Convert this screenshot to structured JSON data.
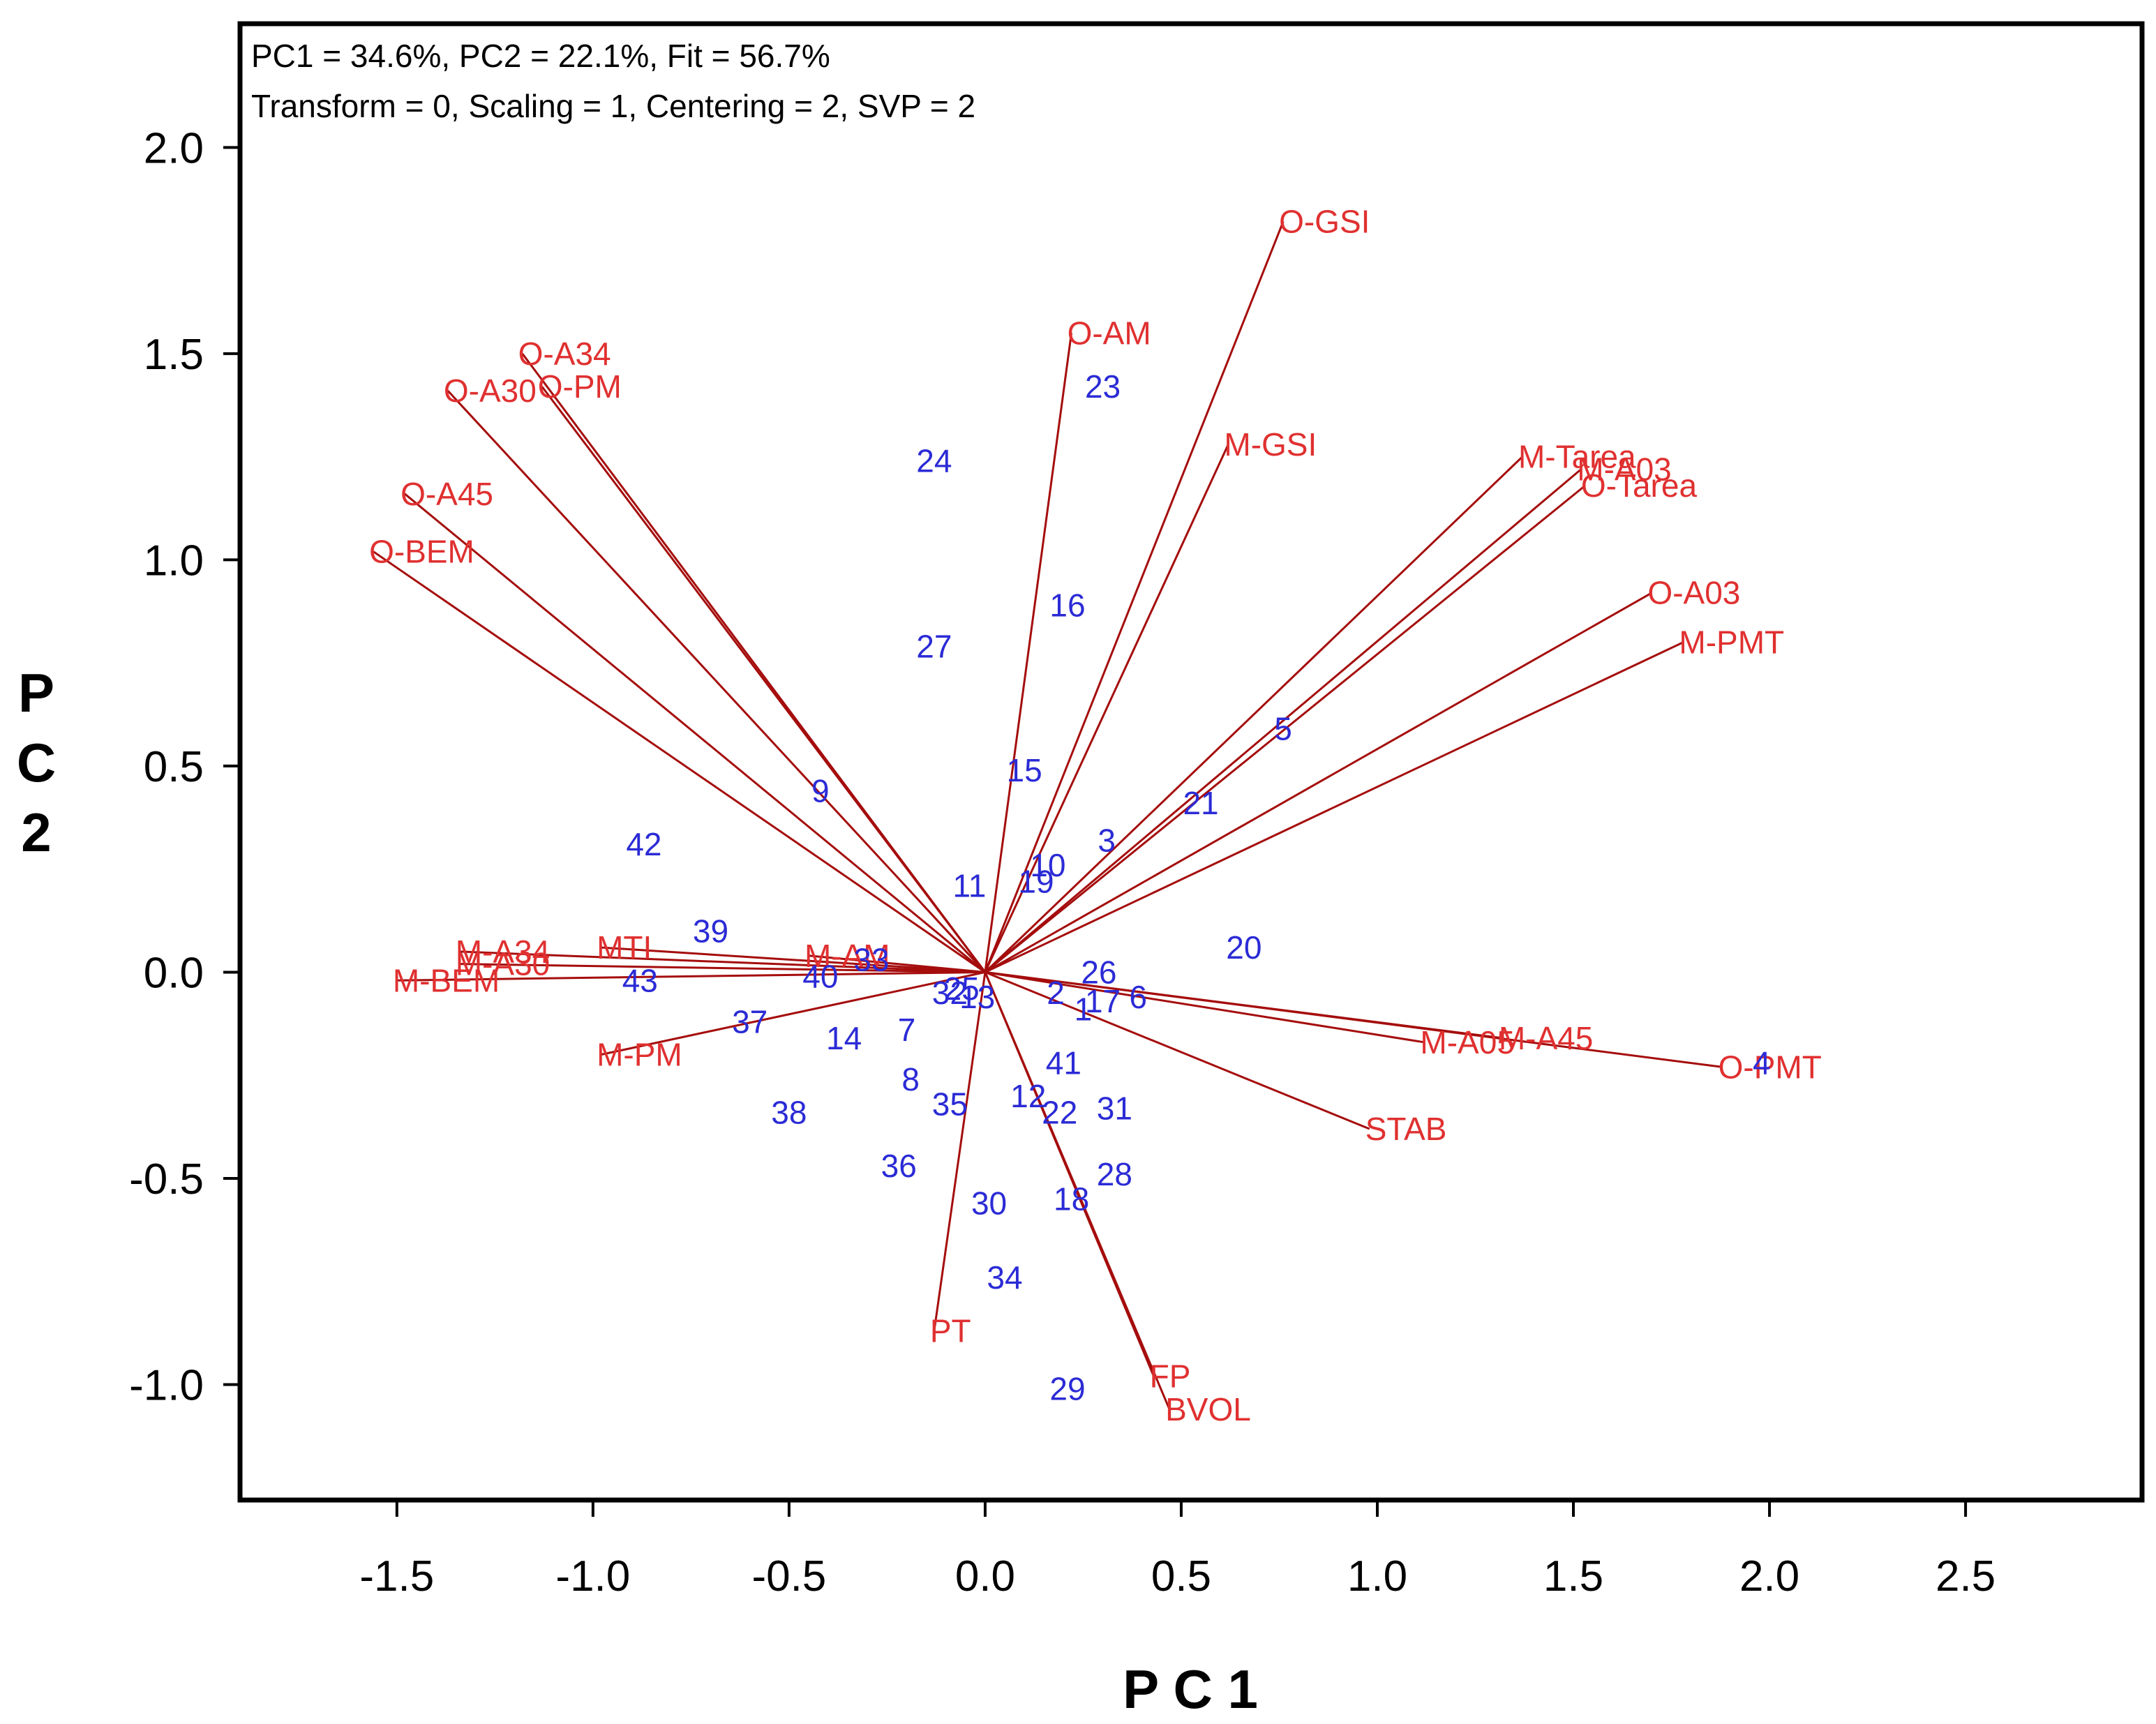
{
  "chart_data": {
    "type": "scatter",
    "subtype": "biplot",
    "xlabel": "P C 1",
    "ylabel_lines": [
      "P",
      "C",
      "2"
    ],
    "xlim": [
      -1.9,
      2.95
    ],
    "ylim": [
      -1.28,
      2.3
    ],
    "x_ticks": [
      -1.5,
      -1.0,
      -0.5,
      0.0,
      0.5,
      1.0,
      1.5,
      2.0,
      2.5
    ],
    "x_tick_labels": [
      "-1.5",
      "-1.0",
      "-0.5",
      "0.0",
      "0.5",
      "1.0",
      "1.5",
      "2.0",
      "2.5"
    ],
    "y_ticks": [
      2.0,
      1.5,
      1.0,
      0.5,
      0.0,
      -0.5,
      -1.0
    ],
    "y_tick_labels": [
      "2.0",
      "1.5",
      "1.0",
      "0.5",
      "0.0",
      "-0.5",
      "-1.0"
    ],
    "annotation_line1": "PC1 = 34.6%, PC2 = 22.1%, Fit = 56.7%",
    "annotation_line2": "Transform = 0, Scaling = 1, Centering = 2, SVP = 2",
    "colors": {
      "vectors": "#a50d0d",
      "vector_labels": "#e03030",
      "observations": "#2b2bd6"
    },
    "vectors": [
      {
        "name": "O-GSI",
        "x": 0.76,
        "y": 1.82
      },
      {
        "name": "O-AM",
        "x": 0.22,
        "y": 1.55
      },
      {
        "name": "M-GSI",
        "x": 0.62,
        "y": 1.28
      },
      {
        "name": "M-Tarea",
        "x": 1.37,
        "y": 1.25
      },
      {
        "name": "M-A03",
        "x": 1.52,
        "y": 1.22
      },
      {
        "name": "O-Tarea",
        "x": 1.53,
        "y": 1.18
      },
      {
        "name": "O-A03",
        "x": 1.7,
        "y": 0.92
      },
      {
        "name": "M-PMT",
        "x": 1.78,
        "y": 0.8
      },
      {
        "name": "O-A34",
        "x": -1.18,
        "y": 1.5
      },
      {
        "name": "O-PM",
        "x": -1.13,
        "y": 1.42
      },
      {
        "name": "O-A30",
        "x": -1.37,
        "y": 1.41
      },
      {
        "name": "O-A45",
        "x": -1.48,
        "y": 1.16
      },
      {
        "name": "O-BEM",
        "x": -1.56,
        "y": 1.02
      },
      {
        "name": "MTI",
        "x": -0.98,
        "y": 0.06
      },
      {
        "name": "M-A34",
        "x": -1.34,
        "y": 0.05
      },
      {
        "name": "M-A30",
        "x": -1.34,
        "y": 0.02
      },
      {
        "name": "M-BEM",
        "x": -1.5,
        "y": -0.02
      },
      {
        "name": "M-AM",
        "x": -0.45,
        "y": 0.04
      },
      {
        "name": "M-PM",
        "x": -0.98,
        "y": -0.2
      },
      {
        "name": "M-A45",
        "x": 1.32,
        "y": -0.16
      },
      {
        "name": "M-A05",
        "x": 1.12,
        "y": -0.17
      },
      {
        "name": "O-PMT",
        "x": 1.88,
        "y": -0.23
      },
      {
        "name": "STAB",
        "x": 0.98,
        "y": -0.38
      },
      {
        "name": "FP",
        "x": 0.43,
        "y": -0.98
      },
      {
        "name": "BVOL",
        "x": 0.47,
        "y": -1.06
      },
      {
        "name": "PT",
        "x": -0.13,
        "y": -0.87
      }
    ],
    "vector_label_text": {
      "O-GSI": "O-GSI",
      "O-AM": "O-AM",
      "M-GSI": "M-GSI",
      "M-Tarea": "M-Tarea",
      "M-A03": "M-A03",
      "O-Tarea": "O-Tarea",
      "O-A03": "O-A03",
      "M-PMT": "M-PMT",
      "O-A34": "O-A34",
      "O-PM": "O-PM",
      "O-A30": "O-A30",
      "O-A45": "O-A45",
      "O-BEM": "O-BEM",
      "MTI": "MTI",
      "M-A34": "M-A34",
      "M-A30": "M-A30",
      "M-BEM": "M-BEM",
      "M-AM": "M-AM",
      "M-PM": "M-PM",
      "M-A45": "M-A45",
      "M-A05": "M-A05",
      "O-PMT": "O-PMT",
      "STAB": "STAB",
      "FP": "FP",
      "BVOL": "BVOL",
      "PT": "PT"
    },
    "observations": [
      {
        "label": "1",
        "x": 0.25,
        "y": -0.09
      },
      {
        "label": "2",
        "x": 0.18,
        "y": -0.05
      },
      {
        "label": "3",
        "x": 0.31,
        "y": 0.32
      },
      {
        "label": "4",
        "x": 1.98,
        "y": -0.22
      },
      {
        "label": "5",
        "x": 0.76,
        "y": 0.59
      },
      {
        "label": "6",
        "x": 0.39,
        "y": -0.06
      },
      {
        "label": "7",
        "x": -0.2,
        "y": -0.14
      },
      {
        "label": "8",
        "x": -0.19,
        "y": -0.26
      },
      {
        "label": "9",
        "x": -0.42,
        "y": 0.44
      },
      {
        "label": "10",
        "x": 0.16,
        "y": 0.26
      },
      {
        "label": "11",
        "x": -0.04,
        "y": 0.21
      },
      {
        "label": "12",
        "x": 0.11,
        "y": -0.3
      },
      {
        "label": "13",
        "x": -0.02,
        "y": -0.06
      },
      {
        "label": "14",
        "x": -0.36,
        "y": -0.16
      },
      {
        "label": "15",
        "x": 0.1,
        "y": 0.49
      },
      {
        "label": "16",
        "x": 0.21,
        "y": 0.89
      },
      {
        "label": "17",
        "x": 0.3,
        "y": -0.07
      },
      {
        "label": "18",
        "x": 0.22,
        "y": -0.55
      },
      {
        "label": "19",
        "x": 0.13,
        "y": 0.22
      },
      {
        "label": "20",
        "x": 0.66,
        "y": 0.06
      },
      {
        "label": "21",
        "x": 0.55,
        "y": 0.41
      },
      {
        "label": "22",
        "x": 0.19,
        "y": -0.34
      },
      {
        "label": "23",
        "x": 0.3,
        "y": 1.42
      },
      {
        "label": "24",
        "x": -0.13,
        "y": 1.24
      },
      {
        "label": "25",
        "x": -0.06,
        "y": -0.04
      },
      {
        "label": "26",
        "x": 0.29,
        "y": 0.0
      },
      {
        "label": "27",
        "x": -0.13,
        "y": 0.79
      },
      {
        "label": "28",
        "x": 0.33,
        "y": -0.49
      },
      {
        "label": "29",
        "x": 0.21,
        "y": -1.01
      },
      {
        "label": "30",
        "x": 0.01,
        "y": -0.56
      },
      {
        "label": "31",
        "x": 0.33,
        "y": -0.33
      },
      {
        "label": "32",
        "x": -0.09,
        "y": -0.05
      },
      {
        "label": "33",
        "x": -0.29,
        "y": 0.03
      },
      {
        "label": "34",
        "x": 0.05,
        "y": -0.74
      },
      {
        "label": "35",
        "x": -0.09,
        "y": -0.32
      },
      {
        "label": "36",
        "x": -0.22,
        "y": -0.47
      },
      {
        "label": "37",
        "x": -0.6,
        "y": -0.12
      },
      {
        "label": "38",
        "x": -0.5,
        "y": -0.34
      },
      {
        "label": "39",
        "x": -0.7,
        "y": 0.1
      },
      {
        "label": "40",
        "x": -0.42,
        "y": -0.01
      },
      {
        "label": "41",
        "x": 0.2,
        "y": -0.22
      },
      {
        "label": "42",
        "x": -0.87,
        "y": 0.31
      },
      {
        "label": "43",
        "x": -0.88,
        "y": -0.02
      }
    ]
  }
}
